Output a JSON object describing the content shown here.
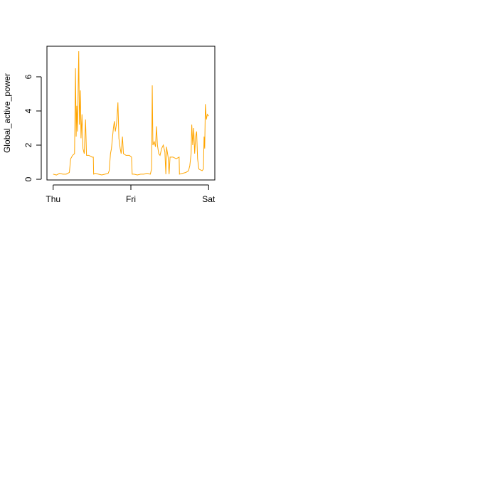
{
  "chart_data": {
    "type": "line",
    "y_label": "Global_active_power",
    "color": "#ffa500",
    "x": [
      0,
      1,
      2,
      3,
      4,
      5,
      5.4,
      6,
      6.6,
      6.9,
      7.1,
      7.3,
      7.5,
      7.9,
      8.1,
      8.4,
      8.6,
      8.9,
      9.2,
      9.6,
      10,
      10.3,
      11,
      12,
      12.4,
      12.5,
      13,
      14,
      15,
      16,
      17,
      17.3,
      17.7,
      18,
      18.6,
      18.9,
      19.2,
      19.6,
      20,
      20.3,
      20.7,
      21,
      21.4,
      21.7,
      22.5,
      23.5,
      24.2,
      24.4,
      25,
      26,
      27,
      28,
      29,
      30,
      30.4,
      30.6,
      30.8,
      31.2,
      31.6,
      31.9,
      32.2,
      32.6,
      33,
      33.5,
      34,
      34.5,
      34.8,
      35,
      35.5,
      35.8,
      36.1,
      37,
      38,
      38.9,
      39,
      40,
      41,
      41.8,
      42.2,
      42.6,
      42.8,
      43.1,
      43.4,
      43.7,
      44,
      44.3,
      44.6,
      45,
      46,
      46.4,
      46.6,
      46.8,
      47,
      47.3,
      47.6,
      48
    ],
    "values": [
      0.3,
      0.25,
      0.35,
      0.3,
      0.3,
      0.4,
      1.2,
      1.4,
      1.5,
      6.5,
      2.5,
      4.3,
      2.8,
      7.5,
      3.2,
      5.2,
      2.4,
      3.8,
      1.8,
      1.5,
      3.5,
      1.4,
      1.4,
      1.3,
      1.3,
      0.3,
      0.35,
      0.3,
      0.25,
      0.3,
      0.35,
      0.5,
      1.5,
      1.8,
      3.0,
      3.4,
      2.8,
      3.3,
      4.5,
      2.4,
      1.8,
      1.5,
      2.5,
      1.5,
      1.4,
      1.4,
      1.3,
      0.3,
      0.3,
      0.25,
      0.3,
      0.3,
      0.35,
      0.3,
      0.6,
      5.5,
      2.0,
      2.2,
      1.9,
      3.1,
      2.0,
      1.5,
      1.4,
      1.8,
      2.0,
      1.6,
      0.3,
      1.9,
      1.3,
      0.3,
      1.3,
      1.3,
      1.2,
      1.3,
      0.3,
      0.35,
      0.4,
      0.5,
      0.8,
      1.5,
      3.2,
      2.0,
      3.0,
      1.5,
      2.5,
      2.8,
      1.2,
      0.6,
      0.5,
      0.6,
      2.5,
      1.8,
      4.4,
      3.5,
      3.8,
      3.7
    ],
    "xlim": [
      -1.92,
      49.92
    ],
    "xticks": [
      {
        "value": 0,
        "label": "Thu"
      },
      {
        "value": 24,
        "label": "Fri"
      },
      {
        "value": 48,
        "label": "Sat"
      }
    ],
    "ylim": [
      -0.04,
      7.79
    ],
    "yticks": [
      0,
      2,
      4,
      6
    ]
  }
}
